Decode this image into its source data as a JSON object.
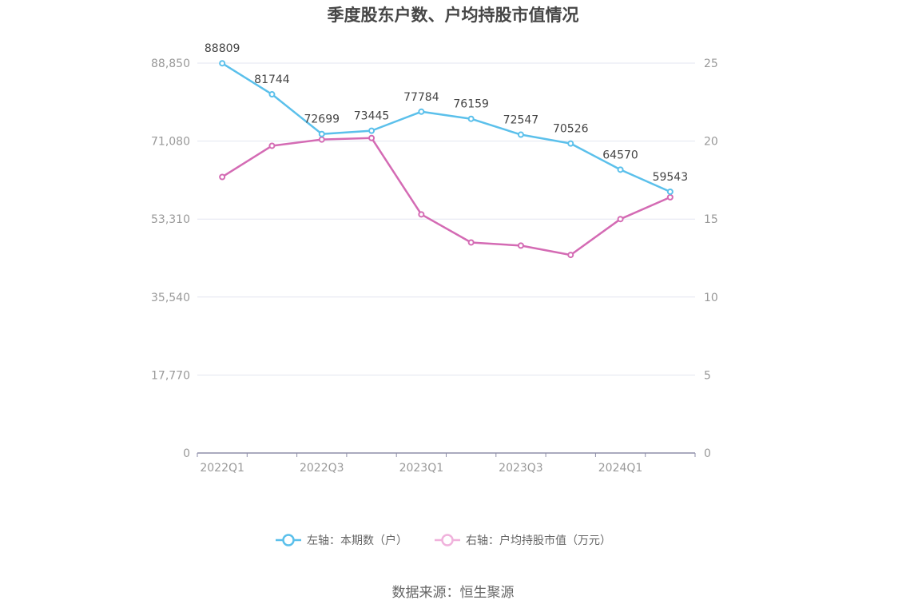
{
  "chart_data": {
    "type": "line",
    "title": "季度股东户数、户均持股市值情况",
    "categories": [
      "2022Q1",
      "2022Q2",
      "2022Q3",
      "2022Q4",
      "2023Q1",
      "2023Q2",
      "2023Q3",
      "2023Q4",
      "2024Q1",
      "2024Q2"
    ],
    "x_tick_labels": [
      "2022Q1",
      "2022Q3",
      "2023Q1",
      "2023Q3",
      "2024Q1"
    ],
    "left_axis": {
      "ticks": [
        "0",
        "17,770",
        "35,540",
        "53,310",
        "71,080",
        "88,850"
      ],
      "ylim": [
        0,
        88850
      ]
    },
    "right_axis": {
      "ticks": [
        "0",
        "5",
        "10",
        "15",
        "20",
        "25"
      ],
      "ylim": [
        0,
        25
      ]
    },
    "grid": true,
    "legend_position": "bottom",
    "series": [
      {
        "name": "左轴：本期数（户）",
        "axis": "left",
        "color": "#5bc0eb",
        "values": [
          88809,
          81744,
          72699,
          73445,
          77784,
          76159,
          72547,
          70526,
          64570,
          59543
        ],
        "labels": [
          "88809",
          "81744",
          "72699",
          "73445",
          "77784",
          "76159",
          "72547",
          "70526",
          "64570",
          "59543"
        ]
      },
      {
        "name": "右轴：户均持股市值（万元）",
        "axis": "right",
        "color": "#d46bb4",
        "values": [
          17.7,
          19.7,
          20.1,
          20.2,
          15.3,
          13.5,
          13.3,
          12.7,
          15.0,
          16.4
        ]
      }
    ],
    "source": "数据来源：恒生聚源"
  }
}
